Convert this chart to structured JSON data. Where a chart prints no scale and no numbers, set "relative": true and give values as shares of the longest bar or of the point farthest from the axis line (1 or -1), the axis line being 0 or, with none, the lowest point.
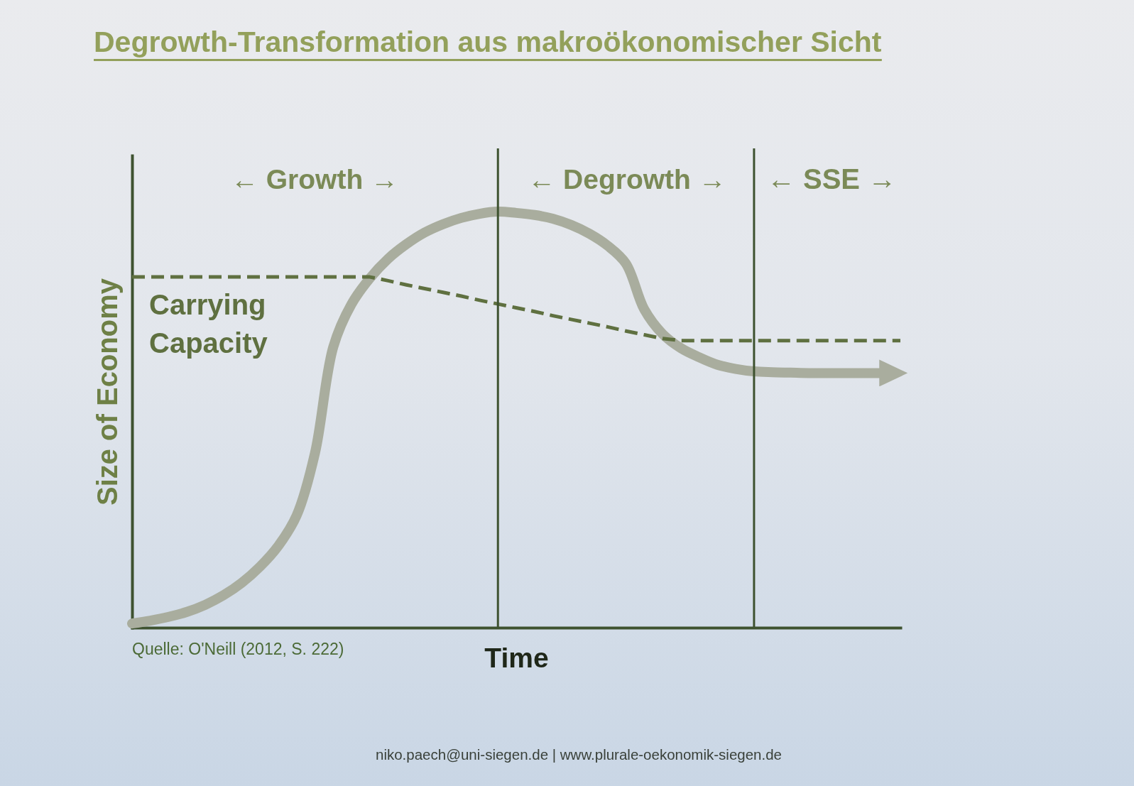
{
  "chart_data": {
    "type": "line",
    "title": "Degrowth-Transformation aus makroökonomischer Sicht",
    "xlabel": "Time",
    "ylabel": "Size of Economy",
    "relative": true,
    "legend": false,
    "categories": [
      null,
      null,
      null,
      null,
      null,
      null,
      null,
      null,
      null,
      null,
      null,
      null,
      null,
      null,
      null,
      null,
      null,
      null,
      null,
      null,
      null,
      null,
      null,
      null,
      null,
      null,
      null,
      null,
      null,
      null,
      null,
      null,
      null,
      null,
      null,
      null,
      null,
      null,
      null,
      null,
      null,
      null,
      null
    ],
    "series": [
      {
        "color": "#a9ad9e",
        "line_style": "solid",
        "values": [
          0.01,
          0.017,
          0.026,
          0.038,
          0.055,
          0.078,
          0.108,
          0.147,
          0.197,
          0.27,
          0.42,
          0.675,
          0.778,
          0.84,
          0.887,
          0.922,
          0.95,
          0.97,
          0.985,
          0.995,
          1,
          0.997,
          0.992,
          0.983,
          0.968,
          0.947,
          0.918,
          0.875,
          0.765,
          0.706,
          0.672,
          0.65,
          0.632,
          0.622,
          0.616,
          0.614,
          0.613,
          0.612,
          0.612,
          0.612,
          0.612,
          0.612,
          null
        ]
      },
      {
        "name": "Carrying Capacity",
        "color": "#5f7040",
        "line_style": "dashed",
        "values": [
          0.843,
          0.843,
          0.843,
          0.843,
          0.843,
          0.843,
          0.843,
          0.843,
          0.843,
          0.843,
          0.843,
          0.843,
          0.843,
          0.843,
          0.834,
          0.824,
          0.815,
          0.806,
          0.797,
          0.787,
          0.778,
          0.769,
          0.76,
          0.75,
          0.741,
          0.732,
          0.723,
          0.713,
          0.704,
          0.695,
          0.69,
          0.69,
          0.69,
          0.69,
          0.69,
          0.69,
          0.69,
          0.69,
          0.69,
          0.69,
          0.69,
          0.69,
          0.69
        ]
      }
    ],
    "annotations": [
      "← Growth →",
      "← Degrowth →",
      "← SSE →",
      "Quelle: O'Neill (2012, S. 222)",
      "niko.paech@uni-siegen.de | www.plurale-oekonomik-siegen.de"
    ]
  }
}
